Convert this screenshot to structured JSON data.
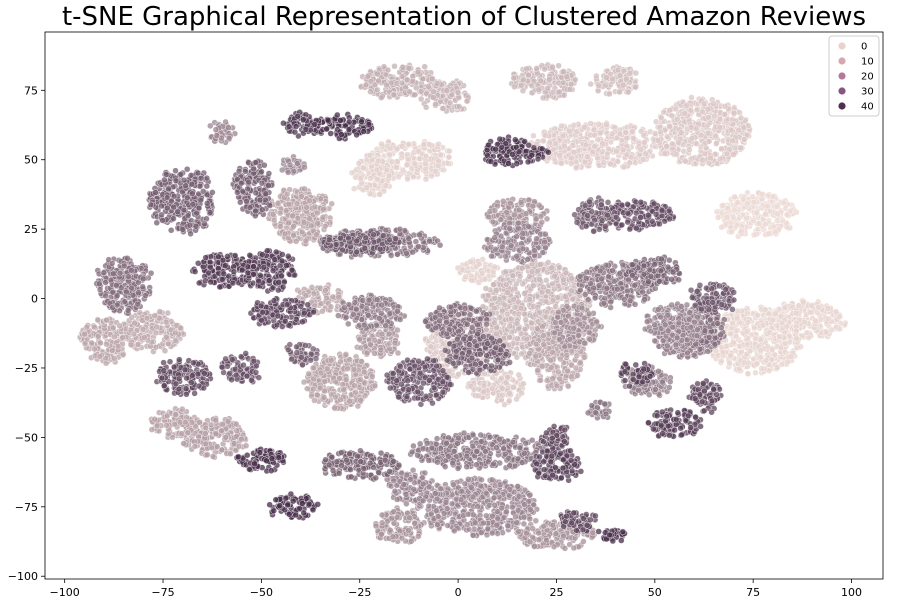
{
  "chart_data": {
    "type": "scatter",
    "title": "t-SNE Graphical Representation of Clustered Amazon Reviews",
    "xlabel": "",
    "ylabel": "",
    "xlim": [
      -105,
      108
    ],
    "ylim": [
      -101,
      96
    ],
    "x_ticks": [
      -100,
      -75,
      -50,
      -25,
      0,
      25,
      50,
      75,
      100
    ],
    "y_ticks": [
      -100,
      -75,
      -50,
      -25,
      0,
      25,
      50,
      75
    ],
    "x_tick_labels": [
      "−100",
      "−75",
      "−50",
      "−25",
      "0",
      "25",
      "50",
      "75",
      "100"
    ],
    "y_tick_labels": [
      "−100",
      "−75",
      "−50",
      "−25",
      "0",
      "25",
      "50",
      "75"
    ],
    "grid": false,
    "legend_position": "top-right",
    "legend": [
      {
        "label": "0",
        "color": "#ecd0cb"
      },
      {
        "label": "10",
        "color": "#d6a7af"
      },
      {
        "label": "20",
        "color": "#b4799a"
      },
      {
        "label": "30",
        "color": "#875581"
      },
      {
        "label": "40",
        "color": "#4f2f4e"
      }
    ],
    "color_scale": {
      "min": 0,
      "max": 45,
      "low_color": "#efdcd6",
      "high_color": "#3b2240"
    },
    "point_alpha": 0.75,
    "clusters": [
      {
        "x": 0,
        "y": -16,
        "value": 5,
        "rx": 8,
        "ry": 12
      },
      {
        "x": 20,
        "y": -5,
        "value": 9,
        "rx": 14,
        "ry": 18
      },
      {
        "x": 5,
        "y": 10,
        "value": 3,
        "rx": 5,
        "ry": 4
      },
      {
        "x": -12,
        "y": 50,
        "value": 3,
        "rx": 11,
        "ry": 7
      },
      {
        "x": -22,
        "y": 44,
        "value": 3,
        "rx": 5,
        "ry": 7
      },
      {
        "x": 35,
        "y": 55,
        "value": 4,
        "rx": 17,
        "ry": 8
      },
      {
        "x": 62,
        "y": 60,
        "value": 5,
        "rx": 12,
        "ry": 12
      },
      {
        "x": 76,
        "y": 30,
        "value": 1,
        "rx": 10,
        "ry": 8
      },
      {
        "x": 88,
        "y": -8,
        "value": 2,
        "rx": 10,
        "ry": 7
      },
      {
        "x": 75,
        "y": -15,
        "value": 2,
        "rx": 12,
        "ry": 12
      },
      {
        "x": 40,
        "y": 78,
        "value": 7,
        "rx": 6,
        "ry": 5
      },
      {
        "x": 22,
        "y": 78,
        "value": 9,
        "rx": 8,
        "ry": 6
      },
      {
        "x": -15,
        "y": 78,
        "value": 11,
        "rx": 10,
        "ry": 6
      },
      {
        "x": -3,
        "y": 73,
        "value": 10,
        "rx": 6,
        "ry": 6
      },
      {
        "x": 10,
        "y": -32,
        "value": 5,
        "rx": 7,
        "ry": 6
      },
      {
        "x": -40,
        "y": 30,
        "value": 14,
        "rx": 8,
        "ry": 10
      },
      {
        "x": -90,
        "y": -15,
        "value": 13,
        "rx": 6,
        "ry": 8
      },
      {
        "x": -78,
        "y": -12,
        "value": 12,
        "rx": 8,
        "ry": 7
      },
      {
        "x": -62,
        "y": -50,
        "value": 15,
        "rx": 8,
        "ry": 7
      },
      {
        "x": -72,
        "y": -45,
        "value": 14,
        "rx": 6,
        "ry": 5
      },
      {
        "x": -30,
        "y": -30,
        "value": 14,
        "rx": 9,
        "ry": 10
      },
      {
        "x": -20,
        "y": -15,
        "value": 16,
        "rx": 6,
        "ry": 6
      },
      {
        "x": -35,
        "y": 0,
        "value": 13,
        "rx": 6,
        "ry": 5
      },
      {
        "x": 15,
        "y": 30,
        "value": 18,
        "rx": 8,
        "ry": 6
      },
      {
        "x": 25,
        "y": -20,
        "value": 13,
        "rx": 7,
        "ry": 12
      },
      {
        "x": 48,
        "y": -30,
        "value": 23,
        "rx": 6,
        "ry": 5
      },
      {
        "x": 58,
        "y": -15,
        "value": 23,
        "rx": 8,
        "ry": 6
      },
      {
        "x": 5,
        "y": -75,
        "value": 21,
        "rx": 15,
        "ry": 10
      },
      {
        "x": 25,
        "y": -85,
        "value": 18,
        "rx": 10,
        "ry": 5
      },
      {
        "x": -15,
        "y": -82,
        "value": 18,
        "rx": 6,
        "ry": 6
      },
      {
        "x": -12,
        "y": -68,
        "value": 22,
        "rx": 6,
        "ry": 6
      },
      {
        "x": 5,
        "y": -55,
        "value": 25,
        "rx": 17,
        "ry": 6
      },
      {
        "x": -25,
        "y": -60,
        "value": 30,
        "rx": 10,
        "ry": 5
      },
      {
        "x": -60,
        "y": 60,
        "value": 21,
        "rx": 3,
        "ry": 4
      },
      {
        "x": -42,
        "y": 48,
        "value": 21,
        "rx": 3,
        "ry": 3
      },
      {
        "x": 15,
        "y": 20,
        "value": 22,
        "rx": 8,
        "ry": 7
      },
      {
        "x": -20,
        "y": 20,
        "value": 26,
        "rx": 15,
        "ry": 5
      },
      {
        "x": -22,
        "y": -5,
        "value": 24,
        "rx": 8,
        "ry": 6
      },
      {
        "x": 0,
        "y": -8,
        "value": 27,
        "rx": 8,
        "ry": 6
      },
      {
        "x": 40,
        "y": 5,
        "value": 25,
        "rx": 10,
        "ry": 8
      },
      {
        "x": 62,
        "y": -10,
        "value": 27,
        "rx": 6,
        "ry": 8
      },
      {
        "x": 55,
        "y": -10,
        "value": 22,
        "rx": 7,
        "ry": 8
      },
      {
        "x": 36,
        "y": -40,
        "value": 25,
        "rx": 3,
        "ry": 3
      },
      {
        "x": 30,
        "y": -10,
        "value": 19,
        "rx": 6,
        "ry": 8
      },
      {
        "x": -70,
        "y": 35,
        "value": 31,
        "rx": 8,
        "ry": 12
      },
      {
        "x": -85,
        "y": 5,
        "value": 27,
        "rx": 7,
        "ry": 10
      },
      {
        "x": -52,
        "y": 40,
        "value": 31,
        "rx": 5,
        "ry": 10
      },
      {
        "x": -10,
        "y": -30,
        "value": 34,
        "rx": 8,
        "ry": 8
      },
      {
        "x": 5,
        "y": -20,
        "value": 31,
        "rx": 8,
        "ry": 7
      },
      {
        "x": -25,
        "y": 20,
        "value": 33,
        "rx": 10,
        "ry": 4
      },
      {
        "x": 45,
        "y": 30,
        "value": 35,
        "rx": 10,
        "ry": 5
      },
      {
        "x": 35,
        "y": 30,
        "value": 32,
        "rx": 5,
        "ry": 6
      },
      {
        "x": 65,
        "y": 0,
        "value": 33,
        "rx": 6,
        "ry": 5
      },
      {
        "x": 50,
        "y": 10,
        "value": 30,
        "rx": 7,
        "ry": 5
      },
      {
        "x": 55,
        "y": -45,
        "value": 38,
        "rx": 7,
        "ry": 5
      },
      {
        "x": 63,
        "y": -35,
        "value": 36,
        "rx": 4,
        "ry": 6
      },
      {
        "x": 45,
        "y": -27,
        "value": 38,
        "rx": 4,
        "ry": 4
      },
      {
        "x": -70,
        "y": -28,
        "value": 36,
        "rx": 7,
        "ry": 6
      },
      {
        "x": -55,
        "y": -25,
        "value": 34,
        "rx": 5,
        "ry": 5
      },
      {
        "x": -40,
        "y": -20,
        "value": 31,
        "rx": 4,
        "ry": 4
      },
      {
        "x": -45,
        "y": -5,
        "value": 37,
        "rx": 8,
        "ry": 5
      },
      {
        "x": -60,
        "y": 10,
        "value": 39,
        "rx": 7,
        "ry": 6
      },
      {
        "x": -48,
        "y": 10,
        "value": 39,
        "rx": 7,
        "ry": 7
      },
      {
        "x": -30,
        "y": 62,
        "value": 42,
        "rx": 8,
        "ry": 4
      },
      {
        "x": -40,
        "y": 63,
        "value": 40,
        "rx": 4,
        "ry": 4
      },
      {
        "x": 12,
        "y": 53,
        "value": 41,
        "rx": 6,
        "ry": 5
      },
      {
        "x": 20,
        "y": 52,
        "value": 41,
        "rx": 3,
        "ry": 3
      },
      {
        "x": -50,
        "y": -58,
        "value": 42,
        "rx": 6,
        "ry": 4
      },
      {
        "x": -42,
        "y": -75,
        "value": 42,
        "rx": 6,
        "ry": 4
      },
      {
        "x": 25,
        "y": -60,
        "value": 38,
        "rx": 6,
        "ry": 6
      },
      {
        "x": 40,
        "y": -85,
        "value": 42,
        "rx": 4,
        "ry": 2
      },
      {
        "x": 30,
        "y": -80,
        "value": 36,
        "rx": 5,
        "ry": 4
      },
      {
        "x": 25,
        "y": -50,
        "value": 36,
        "rx": 4,
        "ry": 4
      }
    ]
  }
}
